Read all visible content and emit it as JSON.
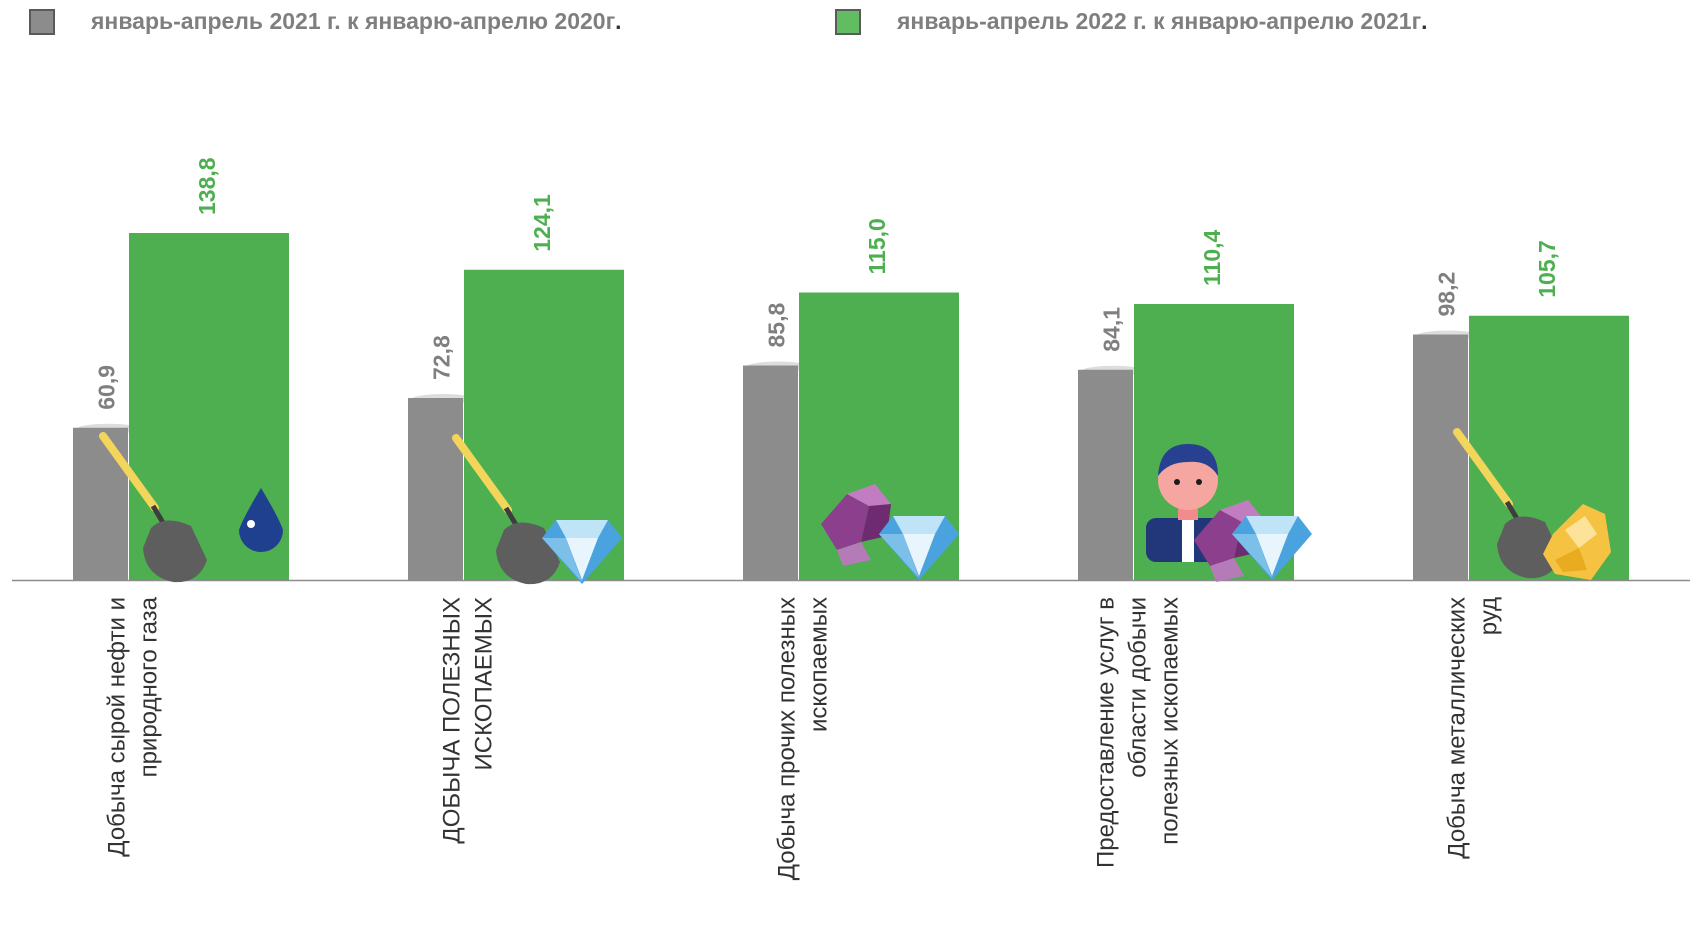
{
  "legend": [
    {
      "label": "январь-апрель 2021 г. к январю-апрелю 2020г",
      "suffix": ".",
      "color": "#8c8c8c"
    },
    {
      "label": "январь-апрель 2022 г. к январю-апрелю 2021г",
      "suffix": ".",
      "color": "#62bd62"
    }
  ],
  "chart_data": {
    "type": "bar",
    "categories": [
      "Добыча сырой нефти и природного газа",
      "ДОБЫЧА ПОЛЕЗНЫХ ИСКОПАЕМЫХ",
      "Добыча прочих полезных ископаемых",
      "Предоставление услуг в области добычи полезных ископаемых",
      "Добыча металлических руд"
    ],
    "category_lines": [
      [
        "Добыча сырой нефти и",
        "природного газа"
      ],
      [
        "ДОБЫЧА ПОЛЕЗНЫХ",
        "ИСКОПАЕМЫХ"
      ],
      [
        "Добыча прочих полезных",
        "ископаемых"
      ],
      [
        "Предоставление услуг в",
        "области добычи",
        "полезных ископаемых"
      ],
      [
        "Добыча металлических",
        "руд"
      ]
    ],
    "series": [
      {
        "name": "январь-апрель 2021 г. к январю-апрелю 2020г.",
        "values": [
          60.9,
          72.8,
          85.8,
          84.1,
          98.2
        ],
        "labels": [
          "60,9",
          "72,8",
          "85,8",
          "84,1",
          "98,2"
        ],
        "color": "#8c8c8c",
        "label_color": "#7f7f7f"
      },
      {
        "name": "январь-апрель 2022 г. к январю-апрелю 2021г.",
        "values": [
          138.8,
          124.1,
          115.0,
          110.4,
          105.7
        ],
        "labels": [
          "138,8",
          "124,1",
          "115,0",
          "110,4",
          "105,7"
        ],
        "color": "#4daf4f",
        "label_color": "#4daf4f"
      }
    ],
    "icons": [
      [
        "shovel-icon",
        "oil-drop-icon"
      ],
      [
        "shovel-icon",
        "diamond-icon"
      ],
      [
        "crystal-icon",
        "diamond-icon"
      ],
      [
        "miner-icon",
        "crystal-icon",
        "diamond-icon"
      ],
      [
        "shovel-icon",
        "gold-nugget-icon"
      ]
    ],
    "ylim": [
      0,
      170
    ],
    "grid": false,
    "legend_position": "top"
  }
}
